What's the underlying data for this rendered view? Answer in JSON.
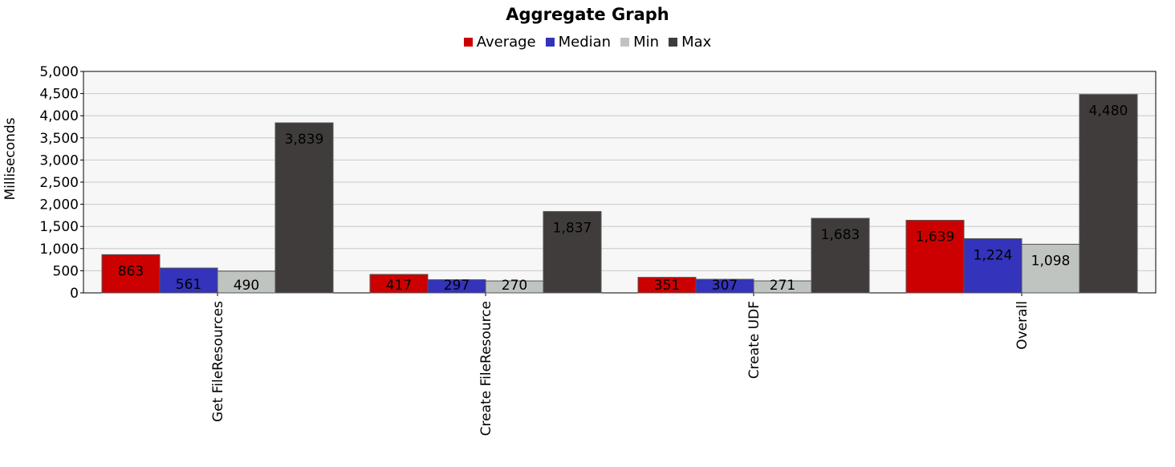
{
  "chart_data": {
    "type": "bar",
    "title": "Aggregate Graph",
    "xlabel": "",
    "ylabel": "Milliseconds",
    "ylim": [
      0,
      5000
    ],
    "yticks": [
      "0",
      "500",
      "1,000",
      "1,500",
      "2,000",
      "2,500",
      "3,000",
      "3,500",
      "4,000",
      "4,500",
      "5,000"
    ],
    "categories": [
      "Get FileResources",
      "Create FileResource",
      "Create UDF",
      "Overall"
    ],
    "series": [
      {
        "name": "Average",
        "color": "#cc0000",
        "values": [
          863,
          417,
          351,
          1639
        ],
        "labels": [
          "863",
          "417",
          "351",
          "1,639"
        ]
      },
      {
        "name": "Median",
        "color": "#3333bb",
        "values": [
          561,
          297,
          307,
          1224
        ],
        "labels": [
          "561",
          "297",
          "307",
          "1,224"
        ]
      },
      {
        "name": "Min",
        "color": "#c0c4c0",
        "values": [
          490,
          270,
          271,
          1098
        ],
        "labels": [
          "490",
          "270",
          "271",
          "1,098"
        ]
      },
      {
        "name": "Max",
        "color": "#403c3c",
        "values": [
          3839,
          1837,
          1683,
          4480
        ],
        "labels": [
          "3,839",
          "1,837",
          "1,683",
          "4,480"
        ]
      }
    ],
    "grid": true,
    "legend_position": "top-center"
  }
}
